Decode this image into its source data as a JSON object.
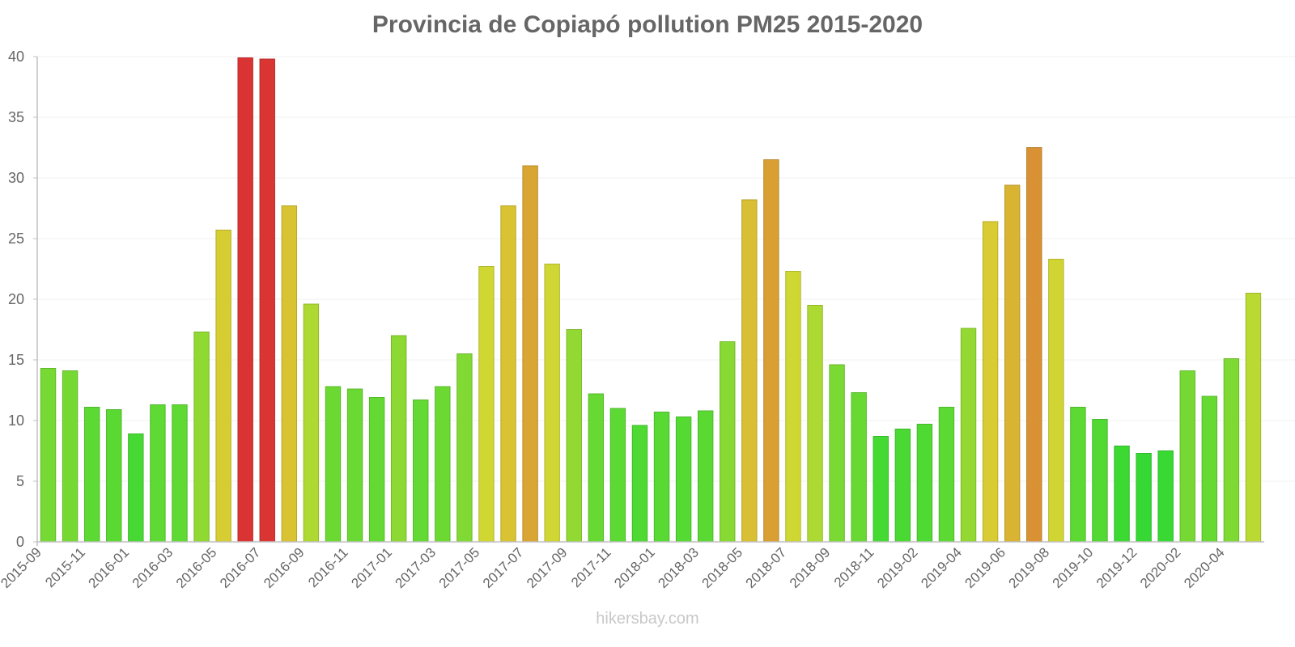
{
  "chart_data": {
    "type": "bar",
    "title": "Provincia de Copiapó pollution PM25 2015-2020",
    "xlabel": "",
    "ylabel": "",
    "ylim": [
      0,
      40
    ],
    "yticks": [
      0,
      5,
      10,
      15,
      20,
      25,
      30,
      35,
      40
    ],
    "grid": true,
    "legend": null,
    "categories": [
      "2015-09",
      "2015-10",
      "2015-11",
      "2015-12",
      "2016-01",
      "2016-02",
      "2016-03",
      "2016-04",
      "2016-05",
      "2016-06",
      "2016-07",
      "2016-08",
      "2016-09",
      "2016-10",
      "2016-11",
      "2016-12",
      "2017-01",
      "2017-02",
      "2017-03",
      "2017-04",
      "2017-05",
      "2017-06",
      "2017-07",
      "2017-08",
      "2017-09",
      "2017-10",
      "2017-11",
      "2017-12",
      "2018-01",
      "2018-02",
      "2018-03",
      "2018-04",
      "2018-05",
      "2018-06",
      "2018-07",
      "2018-08",
      "2018-09",
      "2018-10",
      "2018-11",
      "2018-12",
      "2019-02",
      "2019-03",
      "2019-04",
      "2019-05",
      "2019-06",
      "2019-07",
      "2019-08",
      "2019-09",
      "2019-10",
      "2019-11",
      "2019-12",
      "2020-01",
      "2020-02",
      "2020-03",
      "2020-04",
      "2020-05"
    ],
    "x_tick_labels": [
      "2015-09",
      "2015-11",
      "2016-01",
      "2016-03",
      "2016-05",
      "2016-07",
      "2016-09",
      "2016-11",
      "2017-01",
      "2017-03",
      "2017-05",
      "2017-07",
      "2017-09",
      "2017-11",
      "2018-01",
      "2018-03",
      "2018-05",
      "2018-07",
      "2018-09",
      "2018-11",
      "2019-02",
      "2019-04",
      "2019-06",
      "2019-08",
      "2019-10",
      "2019-12",
      "2020-02",
      "2020-04"
    ],
    "values": [
      14.3,
      14.1,
      11.1,
      10.9,
      8.9,
      11.3,
      11.3,
      17.3,
      25.7,
      39.9,
      39.8,
      27.7,
      19.6,
      12.8,
      12.6,
      11.9,
      17.0,
      11.7,
      12.8,
      15.5,
      22.7,
      27.7,
      31.0,
      22.9,
      17.5,
      12.2,
      11.0,
      9.6,
      10.7,
      10.3,
      10.8,
      16.5,
      28.2,
      31.5,
      22.3,
      19.5,
      14.6,
      12.3,
      8.7,
      9.3,
      9.7,
      11.1,
      17.6,
      26.4,
      29.4,
      32.5,
      23.3,
      11.1,
      10.1,
      7.9,
      7.3,
      7.5,
      14.1,
      12.0,
      15.1,
      20.5
    ]
  },
  "watermark": "hikersbay.com",
  "colors": {
    "text": "#666666",
    "axis": "#c0c0c0",
    "grid": "#f0f0f0",
    "watermark": "#c8c8c8"
  }
}
